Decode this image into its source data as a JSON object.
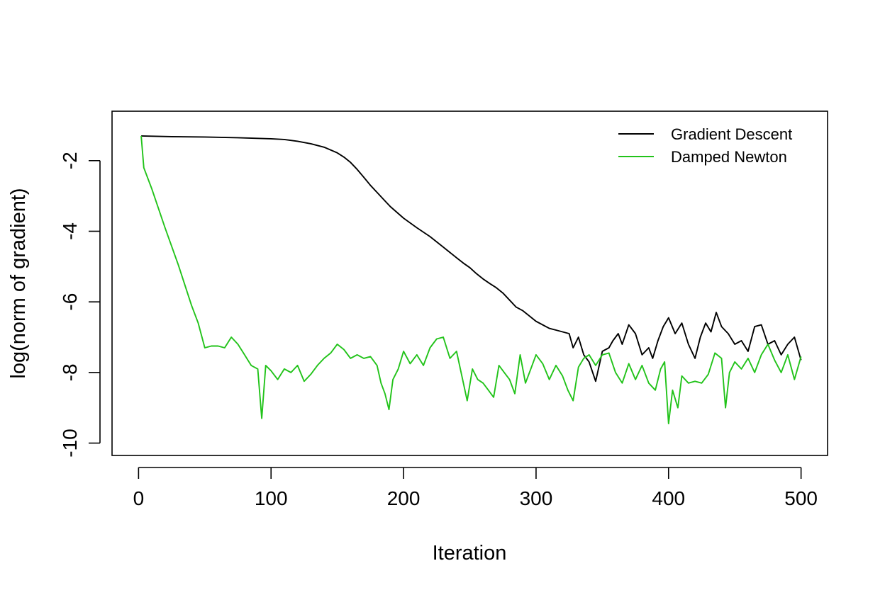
{
  "chart_data": {
    "type": "line",
    "title": "",
    "xlabel": "Iteration",
    "ylabel": "log(norm of gradient)",
    "xlim": [
      -20,
      520
    ],
    "ylim": [
      -10.35,
      -0.6
    ],
    "xticks": [
      0,
      100,
      200,
      300,
      400,
      500
    ],
    "xtick_labels": [
      "0",
      "100",
      "200",
      "300",
      "400",
      "500"
    ],
    "yticks": [
      -2,
      -4,
      -6,
      -8,
      -10
    ],
    "ytick_labels": [
      "-2",
      "-4",
      "-6",
      "-8",
      "-10"
    ],
    "grid": false,
    "legend_position": "top-right",
    "series": [
      {
        "name": "Gradient Descent",
        "color": "#000000",
        "x": [
          2,
          25,
          50,
          75,
          100,
          110,
          120,
          130,
          140,
          150,
          155,
          160,
          165,
          170,
          175,
          180,
          185,
          190,
          200,
          210,
          220,
          230,
          240,
          245,
          250,
          255,
          260,
          265,
          270,
          275,
          280,
          285,
          290,
          295,
          300,
          305,
          310,
          315,
          320,
          325,
          328,
          332,
          336,
          340,
          345,
          350,
          355,
          358,
          362,
          365,
          370,
          375,
          380,
          385,
          388,
          392,
          396,
          400,
          405,
          410,
          415,
          420,
          424,
          428,
          432,
          436,
          440,
          445,
          450,
          455,
          460,
          465,
          470,
          475,
          480,
          485,
          490,
          495,
          500
        ],
        "y": [
          -1.3,
          -1.32,
          -1.33,
          -1.35,
          -1.38,
          -1.4,
          -1.45,
          -1.52,
          -1.62,
          -1.78,
          -1.9,
          -2.05,
          -2.25,
          -2.47,
          -2.7,
          -2.9,
          -3.1,
          -3.3,
          -3.63,
          -3.9,
          -4.15,
          -4.45,
          -4.75,
          -4.9,
          -5.03,
          -5.2,
          -5.35,
          -5.48,
          -5.6,
          -5.75,
          -5.95,
          -6.15,
          -6.25,
          -6.4,
          -6.55,
          -6.65,
          -6.75,
          -6.8,
          -6.85,
          -6.9,
          -7.3,
          -7.0,
          -7.5,
          -7.7,
          -8.25,
          -7.4,
          -7.3,
          -7.1,
          -6.9,
          -7.2,
          -6.65,
          -6.9,
          -7.5,
          -7.3,
          -7.6,
          -7.1,
          -6.7,
          -6.45,
          -6.9,
          -6.6,
          -7.2,
          -7.6,
          -7.0,
          -6.6,
          -6.85,
          -6.3,
          -6.7,
          -6.9,
          -7.2,
          -7.1,
          -7.4,
          -6.7,
          -6.65,
          -7.2,
          -7.1,
          -7.5,
          -7.2,
          -7.0,
          -7.65
        ]
      },
      {
        "name": "Damped Newton",
        "color": "#22c31a",
        "x": [
          2,
          4,
          10,
          20,
          30,
          40,
          45,
          50,
          55,
          60,
          65,
          70,
          75,
          80,
          85,
          90,
          93,
          96,
          100,
          105,
          110,
          115,
          120,
          125,
          130,
          135,
          140,
          145,
          150,
          155,
          160,
          165,
          170,
          175,
          180,
          183,
          186,
          189,
          192,
          196,
          200,
          205,
          210,
          215,
          220,
          225,
          230,
          235,
          240,
          244,
          248,
          252,
          256,
          260,
          264,
          268,
          272,
          276,
          280,
          284,
          288,
          292,
          296,
          300,
          305,
          310,
          315,
          320,
          324,
          328,
          332,
          336,
          340,
          345,
          350,
          355,
          360,
          365,
          370,
          375,
          380,
          385,
          390,
          394,
          397,
          400,
          403,
          407,
          410,
          415,
          420,
          425,
          430,
          435,
          440,
          443,
          446,
          450,
          455,
          460,
          465,
          470,
          475,
          480,
          485,
          490,
          495,
          500
        ],
        "y": [
          -1.3,
          -2.2,
          -2.8,
          -3.9,
          -4.95,
          -6.1,
          -6.6,
          -7.3,
          -7.25,
          -7.25,
          -7.3,
          -7.0,
          -7.2,
          -7.5,
          -7.8,
          -7.9,
          -9.3,
          -7.8,
          -7.95,
          -8.2,
          -7.9,
          -8.0,
          -7.8,
          -8.25,
          -8.05,
          -7.8,
          -7.6,
          -7.45,
          -7.2,
          -7.35,
          -7.6,
          -7.5,
          -7.6,
          -7.55,
          -7.8,
          -8.3,
          -8.6,
          -9.05,
          -8.2,
          -7.9,
          -7.4,
          -7.75,
          -7.5,
          -7.8,
          -7.3,
          -7.05,
          -7.0,
          -7.6,
          -7.4,
          -8.1,
          -8.8,
          -7.9,
          -8.2,
          -8.3,
          -8.5,
          -8.7,
          -7.8,
          -8.0,
          -8.2,
          -8.6,
          -7.5,
          -8.3,
          -7.9,
          -7.5,
          -7.75,
          -8.2,
          -7.8,
          -8.1,
          -8.5,
          -8.8,
          -7.85,
          -7.6,
          -7.5,
          -7.8,
          -7.5,
          -7.45,
          -8.0,
          -8.3,
          -7.75,
          -8.2,
          -7.8,
          -8.3,
          -8.5,
          -7.9,
          -7.7,
          -9.45,
          -8.5,
          -9.0,
          -8.1,
          -8.3,
          -8.25,
          -8.3,
          -8.05,
          -7.45,
          -7.6,
          -9.0,
          -8.0,
          -7.7,
          -7.9,
          -7.6,
          -8.0,
          -7.5,
          -7.2,
          -7.65,
          -8.0,
          -7.5,
          -8.2,
          -7.55
        ]
      }
    ]
  }
}
